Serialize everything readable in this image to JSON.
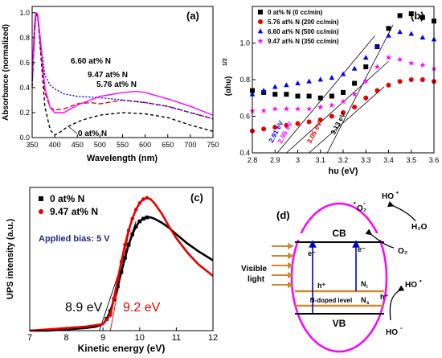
{
  "colors": {
    "black": "#000000",
    "red": "#e60000",
    "blue": "#0000ff",
    "magenta": "#ff00ff",
    "orange": "#cc8a2e",
    "navy": "#1f2a80"
  },
  "chart_data": [
    {
      "panel": "(a)",
      "type": "line",
      "xlabel": "Wavelength (nm)",
      "ylabel": "Absorbance (normalized)",
      "xlim": [
        350,
        750
      ],
      "ylim": [
        0.0,
        1.05
      ],
      "xticks": [
        350,
        400,
        450,
        500,
        550,
        600,
        650,
        700,
        750
      ],
      "yticks": [
        0.0,
        0.2,
        0.4,
        0.6,
        0.8,
        1.0
      ],
      "series": [
        {
          "name": "0 at% N",
          "color": "#000000",
          "dash": "4,3",
          "x": [
            350,
            355,
            358,
            362,
            368,
            378,
            390,
            400,
            410,
            430,
            460,
            500,
            550,
            600,
            650,
            700,
            750
          ],
          "y": [
            0.45,
            0.85,
            0.99,
            0.98,
            0.72,
            0.25,
            0.06,
            0.02,
            0.04,
            0.09,
            0.14,
            0.18,
            0.2,
            0.19,
            0.16,
            0.1,
            0.05
          ]
        },
        {
          "name": "5.76 at% N",
          "color": "#e60000",
          "dash": "6,3",
          "x": [
            350,
            355,
            358,
            362,
            368,
            378,
            390,
            400,
            420,
            450,
            480,
            500,
            550,
            600,
            650,
            700,
            750
          ],
          "y": [
            0.4,
            0.8,
            0.98,
            0.97,
            0.75,
            0.36,
            0.24,
            0.22,
            0.23,
            0.27,
            0.28,
            0.27,
            0.3,
            0.28,
            0.25,
            0.2,
            0.15
          ]
        },
        {
          "name": "6.60 at% N",
          "color": "#0000ff",
          "dash": "2,2",
          "x": [
            350,
            355,
            358,
            362,
            368,
            378,
            390,
            400,
            420,
            450,
            500,
            550,
            600,
            650,
            700,
            750
          ],
          "y": [
            0.42,
            0.82,
            0.99,
            0.98,
            0.78,
            0.5,
            0.42,
            0.39,
            0.35,
            0.33,
            0.32,
            0.3,
            0.28,
            0.25,
            0.2,
            0.15
          ]
        },
        {
          "name": "9.47 at% N",
          "color": "#ff00ff",
          "dash": "",
          "x": [
            350,
            355,
            358,
            362,
            368,
            378,
            390,
            400,
            420,
            450,
            500,
            550,
            580,
            600,
            650,
            700,
            750
          ],
          "y": [
            0.5,
            0.9,
            1.0,
            0.99,
            0.8,
            0.4,
            0.24,
            0.2,
            0.2,
            0.26,
            0.33,
            0.36,
            0.37,
            0.36,
            0.31,
            0.25,
            0.18
          ]
        }
      ],
      "annotations": [
        "6.60 at% N",
        "9.47 at% N",
        "5.76 at% N",
        "0 at% N"
      ]
    },
    {
      "panel": "(b)",
      "type": "scatter",
      "xlabel": "hυ (eV)",
      "ylabel": "(αhυ)",
      "ylabel_sup": "1/2",
      "xlim": [
        2.8,
        3.6
      ],
      "ylim": [
        0.4,
        1.2
      ],
      "xticks": [
        2.8,
        2.9,
        3.0,
        3.1,
        3.2,
        3.3,
        3.4,
        3.5,
        3.6
      ],
      "yticks": [
        0.4,
        0.6,
        0.8,
        1.0
      ],
      "legend_position": "top-left",
      "series": [
        {
          "name": "0 at% N (0 cc/min)",
          "color": "#000000",
          "marker": "square",
          "x": [
            2.8,
            2.85,
            2.9,
            2.95,
            3.0,
            3.05,
            3.1,
            3.15,
            3.2,
            3.25,
            3.3,
            3.35,
            3.4,
            3.45,
            3.5,
            3.55,
            3.6
          ],
          "y": [
            0.74,
            0.73,
            0.72,
            0.72,
            0.71,
            0.71,
            0.7,
            0.71,
            0.73,
            0.78,
            0.87,
            0.98,
            1.08,
            1.15,
            1.16,
            1.14,
            1.12
          ]
        },
        {
          "name": "5.76 at% N (200 cc/min)",
          "color": "#e60000",
          "marker": "circle",
          "x": [
            2.8,
            2.85,
            2.9,
            2.95,
            3.0,
            3.05,
            3.1,
            3.15,
            3.2,
            3.25,
            3.3,
            3.35,
            3.4,
            3.45,
            3.5,
            3.55,
            3.6
          ],
          "y": [
            0.52,
            0.53,
            0.54,
            0.55,
            0.56,
            0.57,
            0.58,
            0.6,
            0.62,
            0.65,
            0.7,
            0.74,
            0.77,
            0.79,
            0.8,
            0.8,
            0.79
          ]
        },
        {
          "name": "6.60 at% N (500 cc/min)",
          "color": "#0000ff",
          "marker": "triangle",
          "x": [
            2.8,
            2.85,
            2.9,
            2.95,
            3.0,
            3.05,
            3.1,
            3.15,
            3.2,
            3.25,
            3.3,
            3.35,
            3.4,
            3.45,
            3.5,
            3.55,
            3.6
          ],
          "y": [
            0.72,
            0.74,
            0.76,
            0.77,
            0.78,
            0.79,
            0.8,
            0.81,
            0.83,
            0.86,
            0.92,
            0.98,
            1.04,
            1.06,
            1.05,
            1.03,
            1.02
          ]
        },
        {
          "name": "9.47 at% N (350 cc/min)",
          "color": "#ff00ff",
          "marker": "star",
          "x": [
            2.8,
            2.85,
            2.9,
            2.95,
            3.0,
            3.05,
            3.1,
            3.15,
            3.2,
            3.25,
            3.3,
            3.35,
            3.4,
            3.45,
            3.5,
            3.55,
            3.6
          ],
          "y": [
            0.63,
            0.63,
            0.64,
            0.64,
            0.64,
            0.64,
            0.65,
            0.66,
            0.68,
            0.72,
            0.79,
            0.87,
            0.92,
            0.91,
            0.89,
            0.88,
            0.86
          ]
        }
      ],
      "tangents": [
        {
          "label": "2.91 eV",
          "color": "#0000ff",
          "x0": 2.91,
          "x1": 3.34,
          "y1": 1.04
        },
        {
          "label": "2.95 eV",
          "color": "#ff00ff",
          "x0": 2.95,
          "x1": 3.4,
          "y1": 0.9
        },
        {
          "label": "3.05 eV",
          "color": "#e60000",
          "x0": 3.05,
          "x1": 3.38,
          "y1": 0.76
        },
        {
          "label": "3.13 eV",
          "color": "#000000",
          "x0": 3.13,
          "x1": 3.42,
          "y1": 1.1
        }
      ]
    },
    {
      "panel": "(c)",
      "type": "scatter",
      "xlabel": "Kinetic energy (eV)",
      "ylabel": "UPS intensity (a.u.)",
      "xlim": [
        7,
        12
      ],
      "ylim": [
        0,
        1.1
      ],
      "xticks": [
        7,
        8,
        9,
        10,
        11,
        12
      ],
      "legend_position": "top-left",
      "annotation_bias": "Applied bias: 5 V",
      "series": [
        {
          "name": "0 at% N",
          "color": "#000000",
          "marker": "square",
          "x": [
            7,
            7.5,
            8,
            8.5,
            8.8,
            9.0,
            9.1,
            9.2,
            9.3,
            9.4,
            9.5,
            9.6,
            9.7,
            9.8,
            9.9,
            10.0,
            10.1,
            10.2,
            10.3,
            10.4,
            10.6,
            10.8,
            11.0,
            11.3,
            11.6,
            12.0
          ],
          "y": [
            0.0,
            0.0,
            0.01,
            0.02,
            0.03,
            0.05,
            0.09,
            0.15,
            0.24,
            0.34,
            0.45,
            0.56,
            0.66,
            0.74,
            0.8,
            0.84,
            0.86,
            0.87,
            0.87,
            0.86,
            0.83,
            0.79,
            0.74,
            0.67,
            0.61,
            0.54
          ]
        },
        {
          "name": "9.47 at% N",
          "color": "#e60000",
          "marker": "circle",
          "x": [
            7,
            7.5,
            8,
            8.5,
            9.0,
            9.2,
            9.3,
            9.4,
            9.5,
            9.6,
            9.7,
            9.8,
            9.9,
            10.0,
            10.1,
            10.2,
            10.3,
            10.4,
            10.6,
            10.8,
            11.0,
            11.3,
            11.6,
            12.0
          ],
          "y": [
            0.0,
            0.01,
            0.02,
            0.03,
            0.05,
            0.12,
            0.25,
            0.39,
            0.53,
            0.66,
            0.77,
            0.86,
            0.93,
            0.98,
            1.01,
            1.02,
            1.01,
            0.98,
            0.9,
            0.8,
            0.71,
            0.6,
            0.51,
            0.42
          ]
        }
      ],
      "labels": [
        {
          "text": "8.9 eV",
          "color": "#000000"
        },
        {
          "text": "9.2 eV",
          "color": "#e60000"
        }
      ]
    }
  ],
  "diagram": {
    "panel": "(d)",
    "cb": "CB",
    "vb": "VB",
    "doped_level": "N-doped level",
    "electron": "e⁻",
    "hole": "h⁺",
    "ni": "N",
    "ni_sub": "i",
    "ns": "N",
    "ns_sub": "s",
    "light": [
      "Visible",
      "light"
    ],
    "species": {
      "o2_rad": "O₂",
      "h2o": "H₂O",
      "o2": "O₂",
      "ho_top": "HO",
      "ho_right": "HO",
      "ho_bottom": "HO"
    }
  }
}
